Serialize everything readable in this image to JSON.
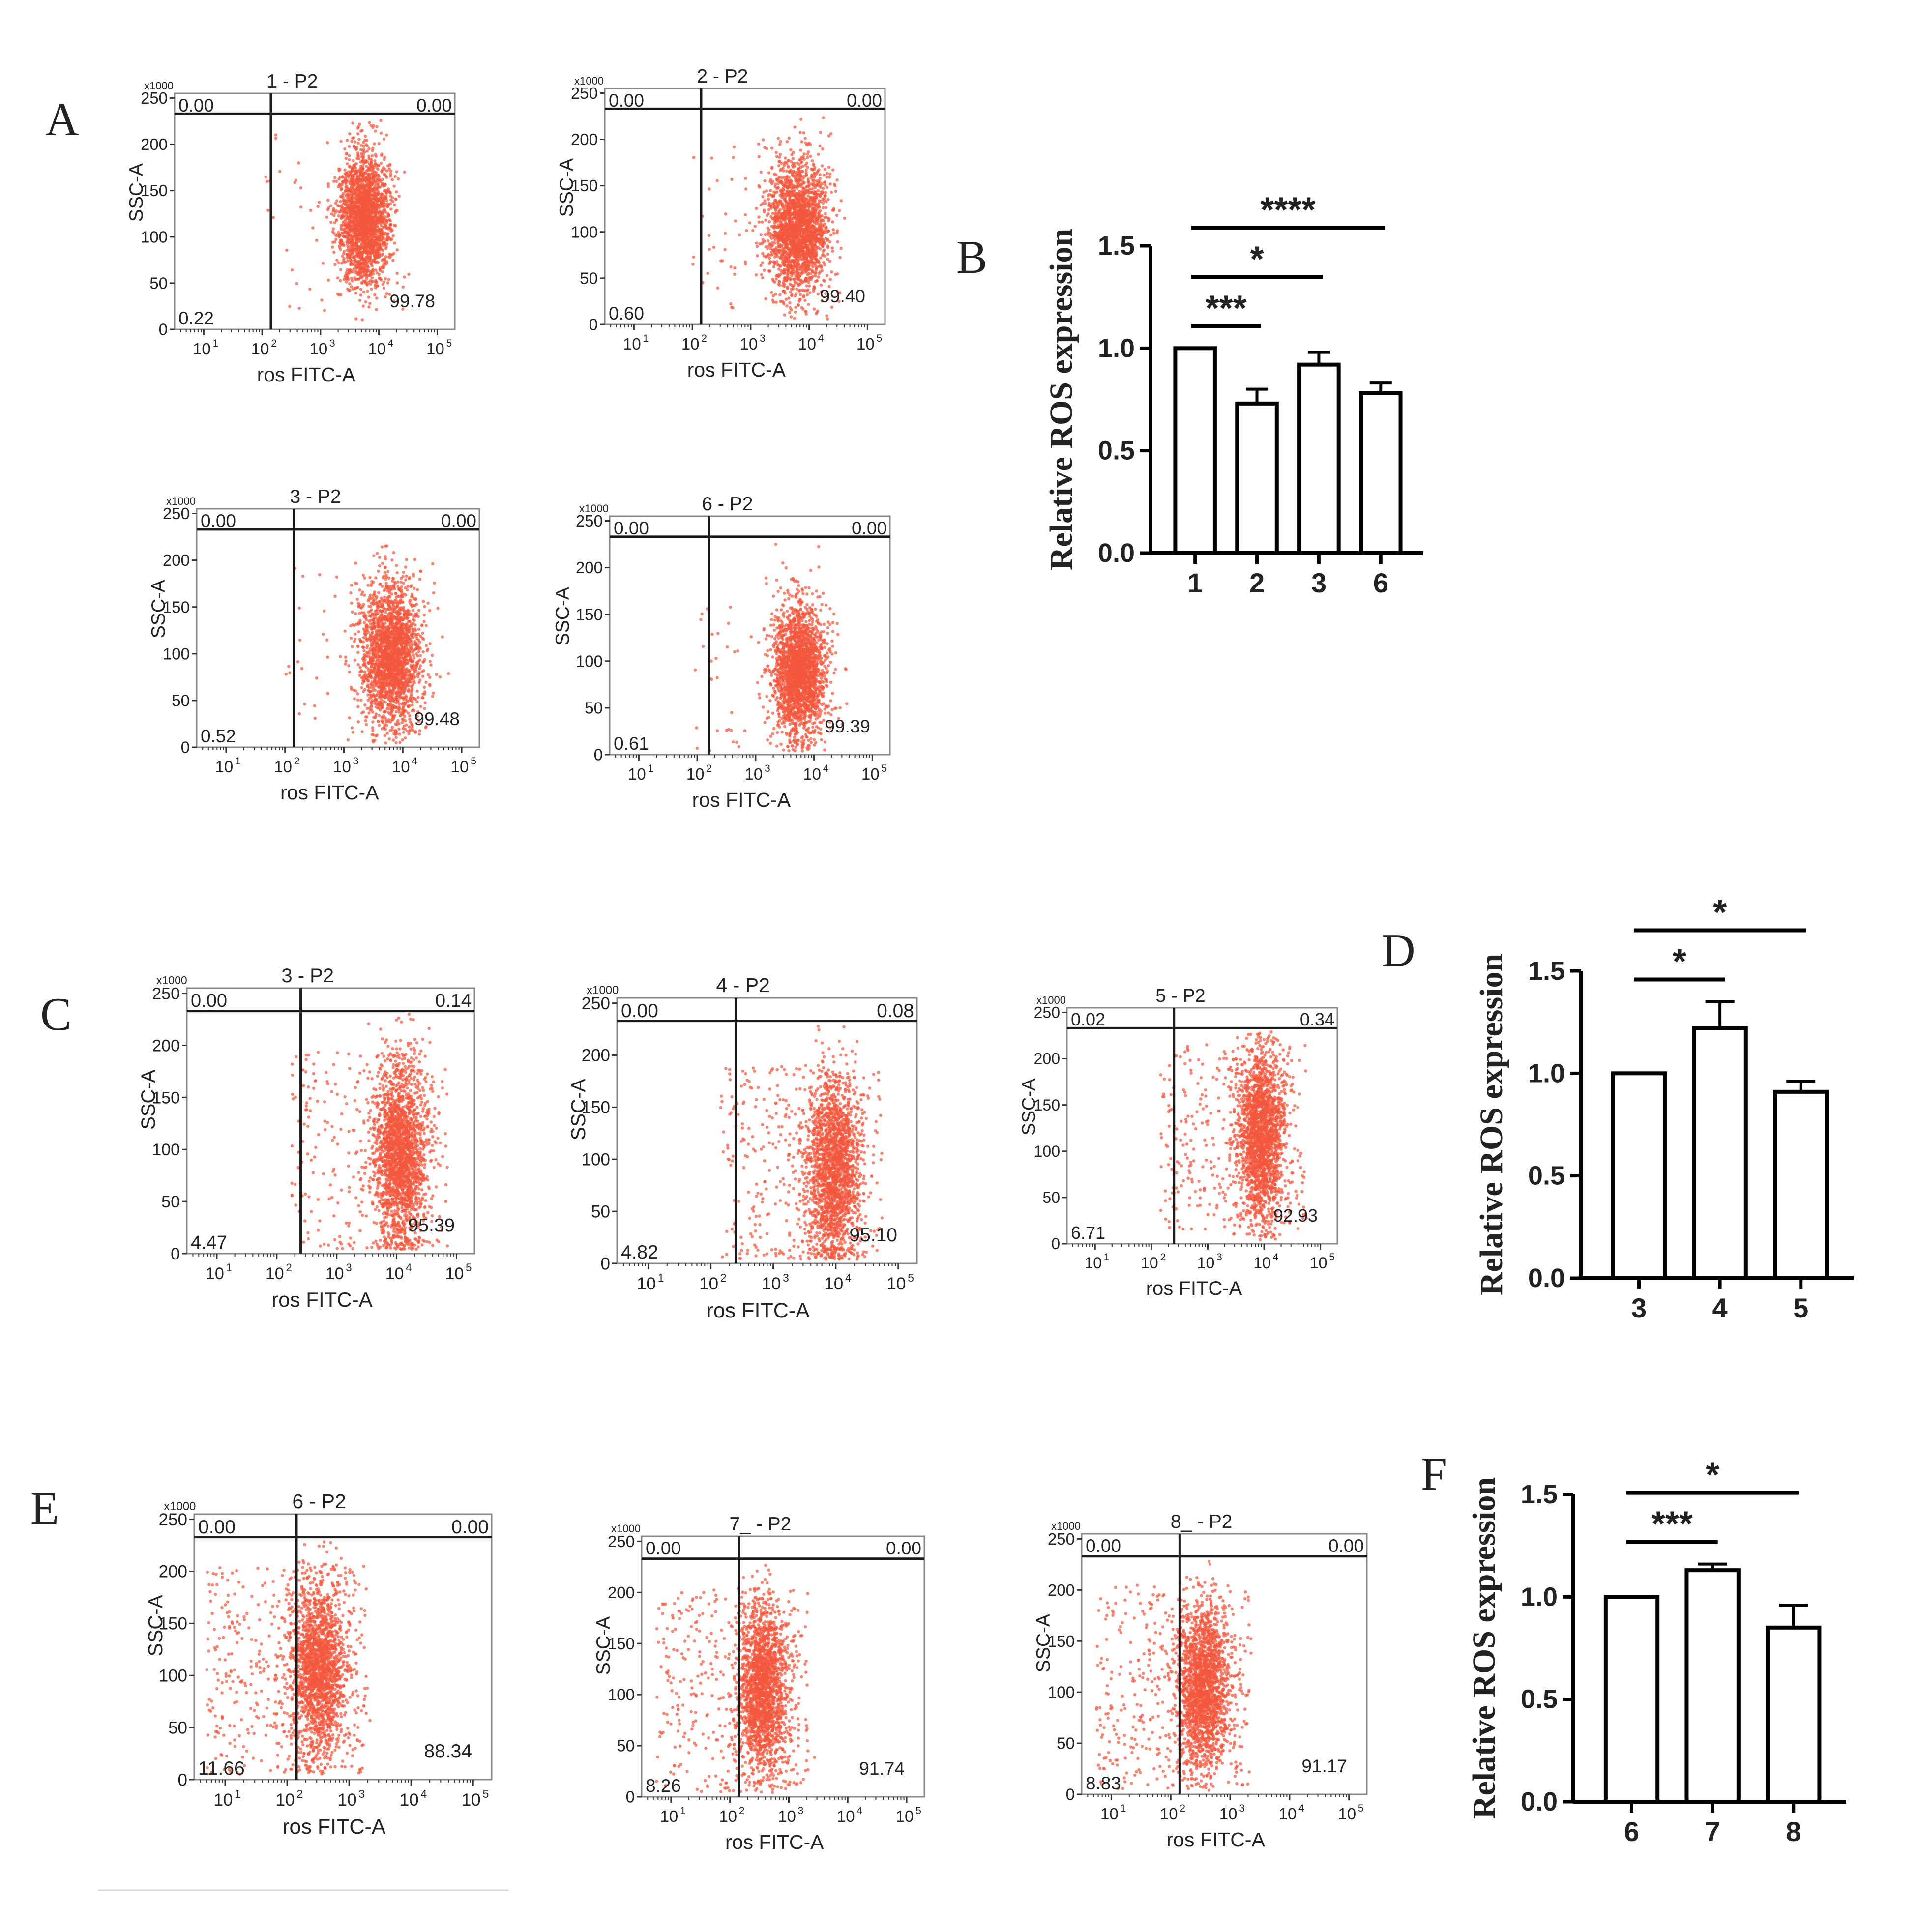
{
  "figure": {
    "panel_letters": [
      "A",
      "B",
      "C",
      "D",
      "E",
      "F"
    ],
    "axis_common": {
      "scale_label": "x1000",
      "y_ticks": [
        "0",
        "50",
        "100",
        "150",
        "200",
        "250"
      ],
      "x_ticks": [
        "10",
        "10",
        "10",
        "10",
        "10"
      ],
      "x_exponents": [
        "1",
        "2",
        "3",
        "4",
        "5"
      ],
      "xlabel": "ros FITC-A",
      "ylabel": "SSC-A"
    },
    "colors": {
      "dots": "#f2573d",
      "axis": "#333333",
      "gate": "#1a1a1a",
      "bar_fill": "#ffffff",
      "bar_stroke": "#000000"
    }
  },
  "chart_data": [
    {
      "type": "scatter",
      "panel": "A",
      "title": "1   - P2",
      "quadrants": {
        "top_left": "0.00",
        "top_right": "0.00",
        "bottom_left": "0.22",
        "bottom_right": "99.78"
      },
      "cluster": {
        "log_center": 3.75,
        "y_center": 120,
        "log_sd": 0.22,
        "y_sd": 35,
        "outlier_fraction": 0.03
      },
      "y_range": [
        0,
        255
      ],
      "x_log_range": [
        0.5,
        5.3
      ],
      "gate": {
        "x_log": 2.15,
        "y": 233
      }
    },
    {
      "type": "scatter",
      "panel": "A",
      "title": "2   - P2",
      "quadrants": {
        "top_left": "0.00",
        "top_right": "0.00",
        "bottom_left": "0.60",
        "bottom_right": "99.40"
      },
      "cluster": {
        "log_center": 3.8,
        "y_center": 105,
        "log_sd": 0.25,
        "y_sd": 35,
        "outlier_fraction": 0.04
      },
      "y_range": [
        0,
        255
      ],
      "x_log_range": [
        0.5,
        5.3
      ],
      "gate": {
        "x_log": 2.15,
        "y": 233
      }
    },
    {
      "type": "scatter",
      "panel": "A",
      "title": "3   - P2",
      "quadrants": {
        "top_left": "0.00",
        "top_right": "0.00",
        "bottom_left": "0.52",
        "bottom_right": "99.48"
      },
      "cluster": {
        "log_center": 3.8,
        "y_center": 100,
        "log_sd": 0.25,
        "y_sd": 38,
        "outlier_fraction": 0.04
      },
      "y_range": [
        0,
        255
      ],
      "x_log_range": [
        0.5,
        5.3
      ],
      "gate": {
        "x_log": 2.15,
        "y": 233
      }
    },
    {
      "type": "scatter",
      "panel": "A",
      "title": "6   - P2",
      "quadrants": {
        "top_left": "0.00",
        "top_right": "0.00",
        "bottom_left": "0.61",
        "bottom_right": "99.39"
      },
      "cluster": {
        "log_center": 3.75,
        "y_center": 90,
        "log_sd": 0.22,
        "y_sd": 35,
        "outlier_fraction": 0.04
      },
      "y_range": [
        0,
        255
      ],
      "x_log_range": [
        0.5,
        5.3
      ],
      "gate": {
        "x_log": 2.2,
        "y": 233
      }
    },
    {
      "type": "bar",
      "panel": "B",
      "categories": [
        "1",
        "2",
        "3",
        "6"
      ],
      "values": [
        1.0,
        0.73,
        0.92,
        0.78
      ],
      "errors": [
        0,
        0.07,
        0.06,
        0.05
      ],
      "ylabel": "Relative ROS expression",
      "ylim": [
        0,
        1.5
      ],
      "y_ticks": [
        "0.0",
        "0.5",
        "1.0",
        "1.5"
      ],
      "significance": [
        {
          "from": 0,
          "to": 1,
          "label": "***"
        },
        {
          "from": 0,
          "to": 2,
          "label": "*"
        },
        {
          "from": 0,
          "to": 3,
          "label": "****"
        }
      ]
    },
    {
      "type": "scatter",
      "panel": "C",
      "title": "3   - P2",
      "quadrants": {
        "top_left": "0.00",
        "top_right": "0.14",
        "bottom_left": "4.47",
        "bottom_right": "95.39"
      },
      "cluster": {
        "log_center": 4.05,
        "y_center": 95,
        "log_sd": 0.22,
        "y_sd": 45,
        "outlier_fraction": 0.12
      },
      "y_range": [
        0,
        255
      ],
      "x_log_range": [
        0.5,
        5.3
      ],
      "gate": {
        "x_log": 2.4,
        "y": 233
      }
    },
    {
      "type": "scatter",
      "panel": "C",
      "title": "4   - P2",
      "quadrants": {
        "top_left": "0.00",
        "top_right": "0.08",
        "bottom_left": "4.82",
        "bottom_right": "95.10"
      },
      "cluster": {
        "log_center": 3.95,
        "y_center": 90,
        "log_sd": 0.22,
        "y_sd": 45,
        "outlier_fraction": 0.14
      },
      "y_range": [
        0,
        255
      ],
      "x_log_range": [
        0.5,
        5.3
      ],
      "gate": {
        "x_log": 2.4,
        "y": 233
      }
    },
    {
      "type": "scatter",
      "panel": "C",
      "title": "5   - P2",
      "quadrants": {
        "top_left": "0.02",
        "top_right": "0.34",
        "bottom_left": "6.71",
        "bottom_right": "92.93"
      },
      "cluster": {
        "log_center": 3.95,
        "y_center": 115,
        "log_sd": 0.2,
        "y_sd": 45,
        "outlier_fraction": 0.16
      },
      "y_range": [
        0,
        255
      ],
      "x_log_range": [
        0.5,
        5.3
      ],
      "gate": {
        "x_log": 2.4,
        "y": 233
      }
    },
    {
      "type": "bar",
      "panel": "D",
      "categories": [
        "3",
        "4",
        "5"
      ],
      "values": [
        1.0,
        1.22,
        0.91
      ],
      "errors": [
        0,
        0.13,
        0.05
      ],
      "ylabel": "Relative ROS expression",
      "ylim": [
        0,
        1.5
      ],
      "y_ticks": [
        "0.0",
        "0.5",
        "1.0",
        "1.5"
      ],
      "significance": [
        {
          "from": 0,
          "to": 1,
          "label": "*"
        },
        {
          "from": 0,
          "to": 2,
          "label": "*"
        }
      ]
    },
    {
      "type": "scatter",
      "panel": "E",
      "title": "6   - P2",
      "quadrants": {
        "top_left": "0.00",
        "top_right": "0.00",
        "bottom_left": "11.66",
        "bottom_right": "88.34"
      },
      "cluster": {
        "log_center": 2.5,
        "y_center": 105,
        "log_sd": 0.22,
        "y_sd": 40,
        "outlier_fraction": 0.2
      },
      "y_range": [
        0,
        255
      ],
      "x_log_range": [
        0.5,
        5.3
      ],
      "gate": {
        "x_log": 2.15,
        "y": 233
      }
    },
    {
      "type": "scatter",
      "panel": "E",
      "title": "7_ - P2",
      "quadrants": {
        "top_left": "0.00",
        "top_right": "0.00",
        "bottom_left": "8.26",
        "bottom_right": "91.74"
      },
      "cluster": {
        "log_center": 2.55,
        "y_center": 105,
        "log_sd": 0.22,
        "y_sd": 40,
        "outlier_fraction": 0.16
      },
      "y_range": [
        0,
        255
      ],
      "x_log_range": [
        0.5,
        5.3
      ],
      "gate": {
        "x_log": 2.15,
        "y": 233
      }
    },
    {
      "type": "scatter",
      "panel": "E",
      "title": "8_ - P2",
      "quadrants": {
        "top_left": "0.00",
        "top_right": "0.00",
        "bottom_left": "8.83",
        "bottom_right": "91.17"
      },
      "cluster": {
        "log_center": 2.55,
        "y_center": 105,
        "log_sd": 0.22,
        "y_sd": 40,
        "outlier_fraction": 0.17
      },
      "y_range": [
        0,
        255
      ],
      "x_log_range": [
        0.5,
        5.3
      ],
      "gate": {
        "x_log": 2.15,
        "y": 233
      }
    },
    {
      "type": "bar",
      "panel": "F",
      "categories": [
        "6",
        "7",
        "8"
      ],
      "values": [
        1.0,
        1.13,
        0.85
      ],
      "errors": [
        0,
        0.03,
        0.11
      ],
      "ylabel": "Relative ROS expression",
      "ylim": [
        0,
        1.5
      ],
      "y_ticks": [
        "0.0",
        "0.5",
        "1.0",
        "1.5"
      ],
      "significance": [
        {
          "from": 0,
          "to": 1,
          "label": "***"
        },
        {
          "from": 0,
          "to": 2,
          "label": "*"
        }
      ]
    }
  ]
}
